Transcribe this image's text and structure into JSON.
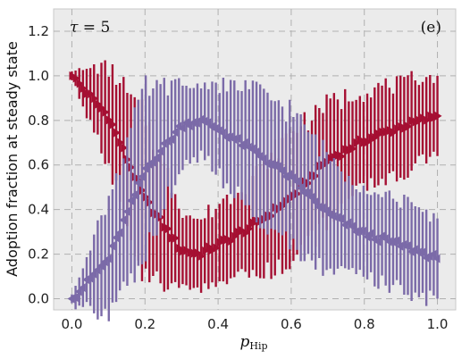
{
  "chart_data": {
    "type": "scatter",
    "title": "",
    "xlabel_main": "p",
    "xlabel_sub": "Hip",
    "ylabel": "Adoption fraction at steady state",
    "annotation_left_symbol": "τ",
    "annotation_left_rest": " = 5",
    "annotation_right": "(e)",
    "xlim": [
      -0.05,
      1.05
    ],
    "ylim": [
      -0.05,
      1.3
    ],
    "x_ticks": [
      0.0,
      0.2,
      0.4,
      0.6,
      0.8,
      1.0
    ],
    "x_tick_labels": [
      "0.0",
      "0.2",
      "0.4",
      "0.6",
      "0.8",
      "1.0"
    ],
    "y_ticks": [
      0.0,
      0.2,
      0.4,
      0.6,
      0.8,
      1.0,
      1.2
    ],
    "y_tick_labels": [
      "0.0",
      "0.2",
      "0.4",
      "0.6",
      "0.8",
      "1.0",
      "1.2"
    ],
    "grid": true,
    "n_points": 100,
    "series": [
      {
        "color": "#a50f32",
        "marker": "triangle-right",
        "x": [
          0.0,
          0.1,
          0.2,
          0.3,
          0.35,
          0.4,
          0.5,
          0.6,
          0.7,
          0.8,
          0.9,
          1.0
        ],
        "y": [
          1.0,
          0.82,
          0.45,
          0.22,
          0.2,
          0.24,
          0.33,
          0.45,
          0.62,
          0.71,
          0.77,
          0.82
        ],
        "err": [
          0.02,
          0.22,
          0.36,
          0.18,
          0.15,
          0.18,
          0.22,
          0.3,
          0.26,
          0.22,
          0.2,
          0.18
        ]
      },
      {
        "color": "#7b6aa8",
        "marker": "triangle-left",
        "x": [
          0.0,
          0.1,
          0.2,
          0.3,
          0.35,
          0.4,
          0.5,
          0.6,
          0.7,
          0.8,
          0.9,
          1.0
        ],
        "y": [
          0.0,
          0.18,
          0.58,
          0.78,
          0.8,
          0.76,
          0.66,
          0.54,
          0.38,
          0.29,
          0.24,
          0.18
        ],
        "err": [
          0.02,
          0.27,
          0.36,
          0.18,
          0.16,
          0.2,
          0.28,
          0.3,
          0.26,
          0.2,
          0.2,
          0.18
        ]
      }
    ]
  }
}
